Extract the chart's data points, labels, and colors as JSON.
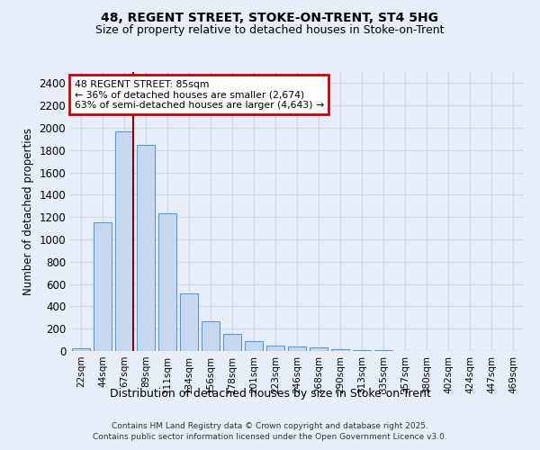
{
  "title1": "48, REGENT STREET, STOKE-ON-TRENT, ST4 5HG",
  "title2": "Size of property relative to detached houses in Stoke-on-Trent",
  "xlabel": "Distribution of detached houses by size in Stoke-on-Trent",
  "ylabel": "Number of detached properties",
  "categories": [
    "22sqm",
    "44sqm",
    "67sqm",
    "89sqm",
    "111sqm",
    "134sqm",
    "156sqm",
    "178sqm",
    "201sqm",
    "223sqm",
    "246sqm",
    "268sqm",
    "290sqm",
    "313sqm",
    "335sqm",
    "357sqm",
    "380sqm",
    "402sqm",
    "424sqm",
    "447sqm",
    "469sqm"
  ],
  "values": [
    25,
    1150,
    1970,
    1850,
    1230,
    515,
    270,
    150,
    90,
    45,
    40,
    35,
    20,
    10,
    5,
    4,
    3,
    2,
    2,
    1,
    2
  ],
  "bar_color": "#c5d8f0",
  "bar_edge_color": "#5b9bd5",
  "bg_color": "#e8eef8",
  "grid_color": "#d0d8e8",
  "red_line_x": 2.4,
  "annotation_text": "48 REGENT STREET: 85sqm\n← 36% of detached houses are smaller (2,674)\n63% of semi-detached houses are larger (4,643) →",
  "annotation_box_color": "#ffffff",
  "annotation_box_edge": "#cc0000",
  "ylim": [
    0,
    2500
  ],
  "yticks": [
    0,
    200,
    400,
    600,
    800,
    1000,
    1200,
    1400,
    1600,
    1800,
    2000,
    2200,
    2400
  ],
  "footer1": "Contains HM Land Registry data © Crown copyright and database right 2025.",
  "footer2": "Contains public sector information licensed under the Open Government Licence v3.0."
}
